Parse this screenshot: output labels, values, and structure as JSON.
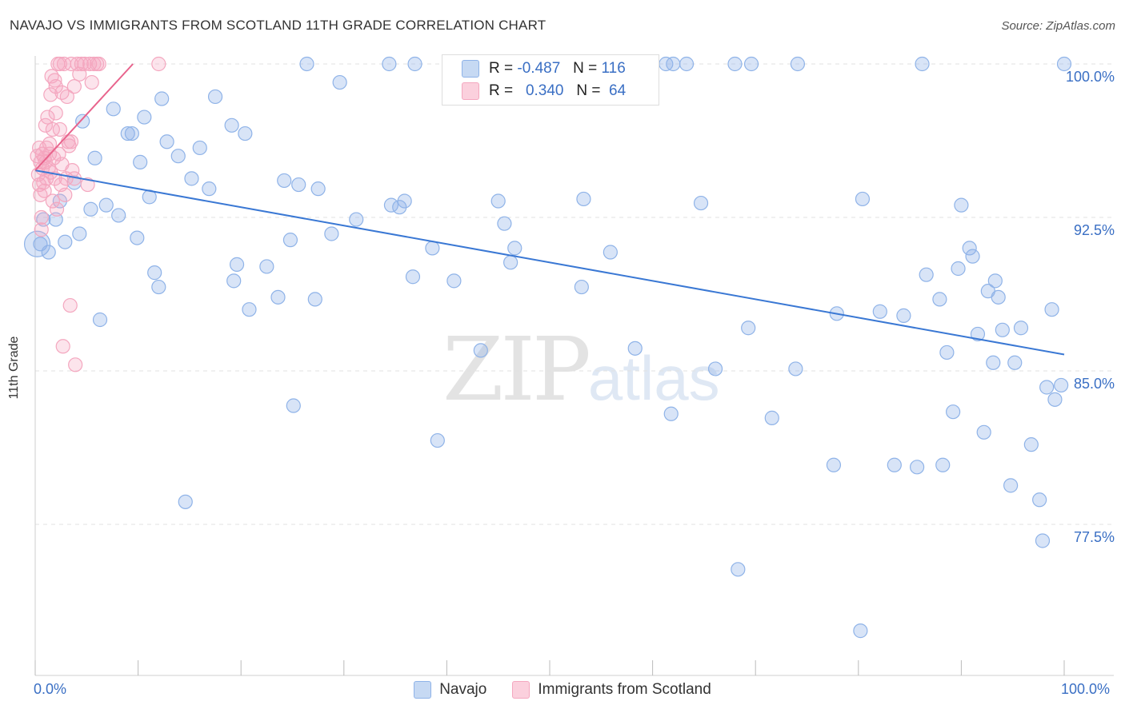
{
  "title": "NAVAJO VS IMMIGRANTS FROM SCOTLAND 11TH GRADE CORRELATION CHART",
  "source": "Source: ZipAtlas.com",
  "watermark": {
    "zip": "ZIP",
    "atlas": "atlas"
  },
  "chart_data": {
    "type": "scatter",
    "xlabel": "",
    "ylabel": "11th Grade",
    "xlim": [
      0,
      100
    ],
    "ylim": [
      70.5,
      100.5
    ],
    "x_ticks": [
      "0.0%",
      "100.0%"
    ],
    "y_ticks": [
      {
        "value": 100.0,
        "label": "100.0%"
      },
      {
        "value": 92.5,
        "label": "92.5%"
      },
      {
        "value": 85.0,
        "label": "85.0%"
      },
      {
        "value": 77.5,
        "label": "77.5%"
      }
    ],
    "series": [
      {
        "name": "Navajo",
        "color": "#8fb3e8",
        "line_color": "#3a78d4",
        "R": "-0.487",
        "N": "116",
        "trend": {
          "x": [
            0,
            100
          ],
          "y": [
            94.8,
            85.8
          ]
        },
        "points": [
          [
            0.5,
            91.2
          ],
          [
            0.8,
            92.4
          ],
          [
            1.3,
            90.8
          ],
          [
            2.0,
            92.4
          ],
          [
            2.4,
            93.3
          ],
          [
            2.9,
            91.3
          ],
          [
            3.8,
            94.2
          ],
          [
            4.3,
            91.7
          ],
          [
            4.6,
            97.2
          ],
          [
            5.4,
            92.9
          ],
          [
            5.8,
            95.4
          ],
          [
            6.3,
            87.5
          ],
          [
            6.9,
            93.1
          ],
          [
            7.6,
            97.8
          ],
          [
            8.1,
            92.6
          ],
          [
            9.0,
            96.6
          ],
          [
            9.4,
            96.6
          ],
          [
            9.9,
            91.5
          ],
          [
            10.2,
            95.2
          ],
          [
            10.6,
            97.4
          ],
          [
            11.1,
            93.5
          ],
          [
            11.6,
            89.8
          ],
          [
            12.0,
            89.1
          ],
          [
            12.3,
            98.3
          ],
          [
            12.8,
            96.2
          ],
          [
            13.9,
            95.5
          ],
          [
            14.6,
            78.6
          ],
          [
            15.2,
            94.4
          ],
          [
            16.0,
            95.9
          ],
          [
            16.9,
            93.9
          ],
          [
            17.5,
            98.4
          ],
          [
            19.1,
            97.0
          ],
          [
            19.3,
            89.4
          ],
          [
            19.6,
            90.2
          ],
          [
            20.4,
            96.6
          ],
          [
            20.8,
            88.0
          ],
          [
            22.5,
            90.1
          ],
          [
            23.6,
            88.6
          ],
          [
            24.2,
            94.3
          ],
          [
            24.8,
            91.4
          ],
          [
            25.1,
            83.3
          ],
          [
            25.6,
            94.1
          ],
          [
            26.4,
            100.0
          ],
          [
            27.2,
            88.5
          ],
          [
            27.5,
            93.9
          ],
          [
            28.8,
            91.7
          ],
          [
            29.6,
            99.1
          ],
          [
            31.2,
            92.4
          ],
          [
            34.4,
            100.0
          ],
          [
            34.6,
            93.1
          ],
          [
            35.4,
            93.0
          ],
          [
            35.9,
            93.3
          ],
          [
            36.7,
            89.6
          ],
          [
            36.9,
            100.0
          ],
          [
            38.6,
            91.0
          ],
          [
            39.1,
            81.6
          ],
          [
            40.7,
            89.4
          ],
          [
            43.3,
            86.0
          ],
          [
            45.6,
            92.2
          ],
          [
            46.2,
            90.3
          ],
          [
            46.6,
            91.0
          ],
          [
            53.1,
            89.1
          ],
          [
            53.3,
            93.4
          ],
          [
            54.1,
            100.0
          ],
          [
            55.9,
            90.8
          ],
          [
            58.3,
            86.1
          ],
          [
            61.3,
            100.0
          ],
          [
            61.8,
            82.9
          ],
          [
            62.0,
            100.0
          ],
          [
            63.3,
            100.0
          ],
          [
            64.7,
            93.2
          ],
          [
            66.1,
            85.1
          ],
          [
            68.0,
            100.0
          ],
          [
            68.3,
            75.3
          ],
          [
            69.3,
            87.1
          ],
          [
            69.6,
            100.0
          ],
          [
            71.6,
            82.7
          ],
          [
            73.9,
            85.1
          ],
          [
            74.1,
            100.0
          ],
          [
            77.6,
            80.4
          ],
          [
            77.9,
            87.8
          ],
          [
            80.2,
            72.3
          ],
          [
            80.4,
            93.4
          ],
          [
            82.1,
            87.9
          ],
          [
            83.5,
            80.4
          ],
          [
            84.4,
            87.7
          ],
          [
            85.7,
            80.3
          ],
          [
            86.2,
            100.0
          ],
          [
            86.6,
            89.7
          ],
          [
            87.9,
            88.5
          ],
          [
            88.2,
            80.4
          ],
          [
            88.6,
            85.9
          ],
          [
            89.2,
            83.0
          ],
          [
            89.7,
            90.0
          ],
          [
            90.0,
            93.1
          ],
          [
            90.8,
            91.0
          ],
          [
            91.1,
            90.6
          ],
          [
            91.6,
            86.8
          ],
          [
            92.2,
            82.0
          ],
          [
            92.6,
            88.9
          ],
          [
            93.1,
            85.4
          ],
          [
            93.3,
            89.4
          ],
          [
            93.6,
            88.6
          ],
          [
            94.0,
            87.0
          ],
          [
            94.8,
            79.4
          ],
          [
            95.2,
            85.4
          ],
          [
            95.8,
            87.1
          ],
          [
            96.8,
            81.4
          ],
          [
            97.6,
            78.7
          ],
          [
            97.9,
            76.7
          ],
          [
            98.3,
            84.2
          ],
          [
            98.8,
            88.0
          ],
          [
            99.1,
            83.6
          ],
          [
            99.7,
            84.3
          ],
          [
            100.0,
            100.0
          ],
          [
            45.0,
            93.3
          ]
        ]
      },
      {
        "name": "Immigrants from Scotland",
        "color": "#f4a7bf",
        "line_color": "#e8638c",
        "R": "0.340",
        "N": "64",
        "trend": {
          "x": [
            0,
            9.5
          ],
          "y": [
            94.8,
            100.0
          ]
        },
        "points": [
          [
            0.2,
            95.5
          ],
          [
            0.3,
            94.6
          ],
          [
            0.4,
            94.1
          ],
          [
            0.5,
            93.6
          ],
          [
            0.5,
            95.2
          ],
          [
            0.6,
            92.5
          ],
          [
            0.7,
            94.9
          ],
          [
            0.7,
            95.6
          ],
          [
            0.8,
            94.2
          ],
          [
            0.9,
            93.8
          ],
          [
            0.9,
            95.4
          ],
          [
            1.0,
            97.0
          ],
          [
            1.1,
            94.4
          ],
          [
            1.1,
            95.9
          ],
          [
            1.2,
            97.4
          ],
          [
            1.3,
            94.9
          ],
          [
            1.4,
            95.6
          ],
          [
            1.4,
            96.1
          ],
          [
            1.5,
            98.5
          ],
          [
            1.5,
            94.7
          ],
          [
            1.6,
            99.4
          ],
          [
            1.7,
            93.3
          ],
          [
            1.7,
            96.8
          ],
          [
            1.8,
            95.4
          ],
          [
            1.9,
            94.4
          ],
          [
            2.0,
            97.6
          ],
          [
            2.0,
            98.9
          ],
          [
            2.1,
            92.9
          ],
          [
            2.2,
            100.0
          ],
          [
            2.3,
            95.6
          ],
          [
            2.4,
            100.0
          ],
          [
            2.4,
            96.8
          ],
          [
            2.5,
            94.1
          ],
          [
            2.6,
            98.6
          ],
          [
            2.7,
            86.2
          ],
          [
            2.8,
            100.0
          ],
          [
            2.9,
            93.6
          ],
          [
            3.0,
            94.4
          ],
          [
            3.1,
            98.4
          ],
          [
            3.2,
            96.2
          ],
          [
            3.3,
            96.0
          ],
          [
            3.4,
            88.2
          ],
          [
            3.5,
            100.0
          ],
          [
            3.5,
            96.2
          ],
          [
            3.6,
            94.8
          ],
          [
            3.8,
            94.4
          ],
          [
            3.8,
            98.9
          ],
          [
            3.9,
            85.3
          ],
          [
            4.1,
            100.0
          ],
          [
            4.3,
            99.5
          ],
          [
            4.5,
            100.0
          ],
          [
            4.8,
            100.0
          ],
          [
            5.1,
            94.1
          ],
          [
            5.3,
            100.0
          ],
          [
            5.5,
            99.1
          ],
          [
            5.7,
            100.0
          ],
          [
            6.0,
            100.0
          ],
          [
            6.2,
            100.0
          ],
          [
            12.0,
            100.0
          ],
          [
            0.6,
            91.9
          ],
          [
            1.0,
            95.2
          ],
          [
            2.6,
            95.1
          ],
          [
            1.9,
            99.2
          ],
          [
            0.4,
            95.9
          ]
        ]
      }
    ]
  },
  "stats": {
    "r_label": "R =",
    "n_label": "N =",
    "navajo_r": "-0.487",
    "navajo_n": "116",
    "scotland_r": "0.340",
    "scotland_n": "64"
  },
  "legend": {
    "navajo": "Navajo",
    "scotland": "Immigrants from Scotland"
  }
}
